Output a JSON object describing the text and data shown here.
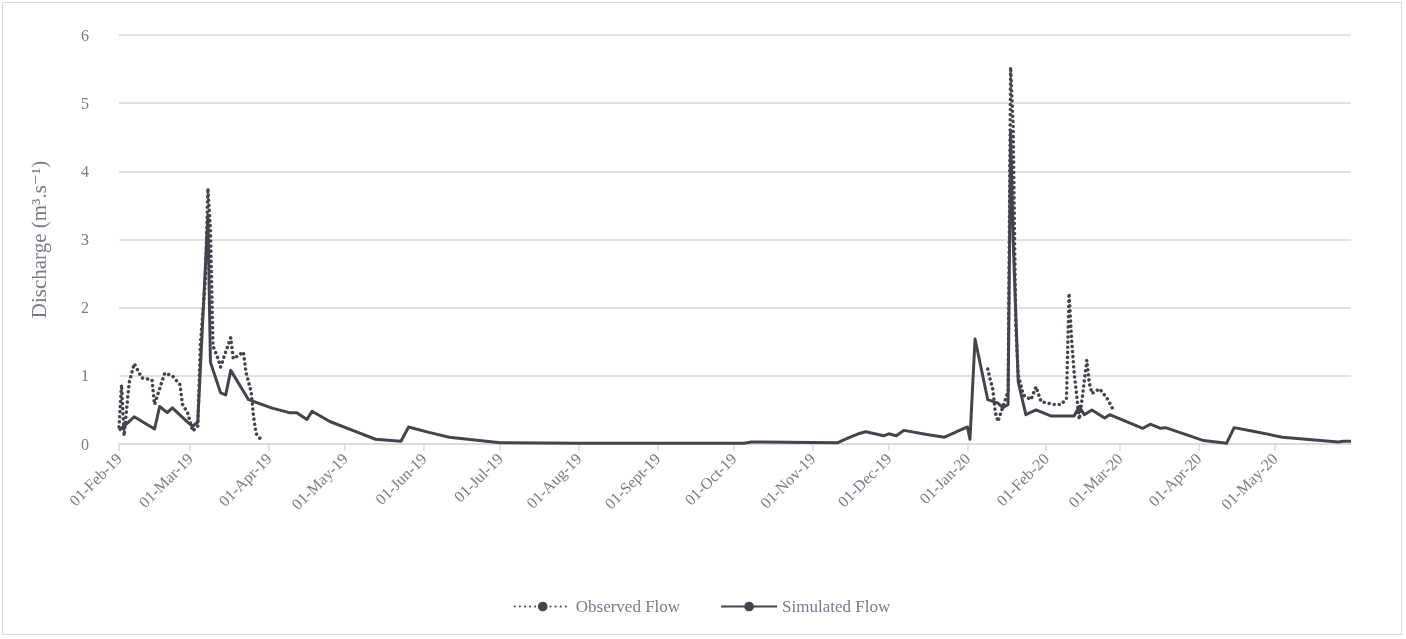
{
  "chart_data": {
    "type": "line",
    "ylabel": "Discharge (m³.s⁻¹)",
    "xlim": [
      "2019-02-01",
      "2020-05-31"
    ],
    "xticks": [
      {
        "value": "2019-02-01",
        "label": "01-Feb-19"
      },
      {
        "value": "2019-03-01",
        "label": "01-Mar-19"
      },
      {
        "value": "2019-04-01",
        "label": "01-Apr-19"
      },
      {
        "value": "2019-05-01",
        "label": "01-May-19"
      },
      {
        "value": "2019-06-01",
        "label": "01-Jun-19"
      },
      {
        "value": "2019-07-01",
        "label": "01-Jul-19"
      },
      {
        "value": "2019-08-01",
        "label": "01-Aug-19"
      },
      {
        "value": "2019-09-01",
        "label": "01-Sept-19"
      },
      {
        "value": "2019-10-01",
        "label": "01-Oct-19"
      },
      {
        "value": "2019-11-01",
        "label": "01-Nov-19"
      },
      {
        "value": "2019-12-01",
        "label": "01-Dec-19"
      },
      {
        "value": "2020-01-01",
        "label": "01-Jan-20"
      },
      {
        "value": "2020-02-01",
        "label": "01-Feb-20"
      },
      {
        "value": "2020-03-01",
        "label": "01-Mar-20"
      },
      {
        "value": "2020-04-01",
        "label": "01-Apr-20"
      },
      {
        "value": "2020-05-01",
        "label": "01-May-20"
      }
    ],
    "ylim": [
      0,
      6
    ],
    "yticks": [
      0,
      1,
      2,
      3,
      4,
      5,
      6
    ],
    "grid": "y",
    "legend": "bottom",
    "marker": "none",
    "series": [
      {
        "name": "Observed Flow",
        "color": "#44444e",
        "line_style": "dotted",
        "x": [
          "2019-02-01",
          "2019-02-02",
          "2019-02-03",
          "2019-02-05",
          "2019-02-07",
          "2019-02-10",
          "2019-02-14",
          "2019-02-15",
          "2019-02-19",
          "2019-02-22",
          "2019-02-25",
          "2019-02-26",
          "2019-02-28",
          "2019-03-02",
          "2019-03-04",
          "2019-03-05",
          "2019-03-07",
          "2019-03-08",
          "2019-03-09",
          "2019-03-10",
          "2019-03-12",
          "2019-03-13",
          "2019-03-15",
          "2019-03-17",
          "2019-03-18",
          "2019-03-22",
          "2019-03-23",
          "2019-03-25",
          "2019-03-26",
          "2019-03-27",
          "2019-03-29",
          "2019-08-01",
          "2020-01-09",
          "2020-01-10",
          "2020-01-11",
          "2020-01-12",
          "2020-01-13",
          "2020-01-15",
          "2020-01-17",
          "2020-01-18",
          "2020-01-19",
          "2020-01-20",
          "2020-01-21",
          "2020-01-23",
          "2020-01-26",
          "2020-01-28",
          "2020-01-30",
          "2020-02-04",
          "2020-02-07",
          "2020-02-09",
          "2020-02-10",
          "2020-02-11",
          "2020-02-12",
          "2020-02-13",
          "2020-02-14",
          "2020-02-15",
          "2020-02-17",
          "2020-02-18",
          "2020-02-19",
          "2020-02-22",
          "2020-02-25",
          "2020-02-27"
        ],
        "values": [
          0.25,
          0.87,
          0.12,
          0.9,
          1.18,
          0.97,
          0.94,
          0.58,
          1.04,
          1.0,
          0.87,
          0.58,
          0.46,
          0.19,
          0.26,
          1.44,
          2.4,
          3.75,
          3.13,
          1.44,
          1.25,
          1.13,
          1.35,
          1.56,
          1.25,
          1.35,
          1.05,
          0.77,
          0.39,
          0.15,
          0.06,
          null,
          1.1,
          0.94,
          0.8,
          0.46,
          0.33,
          0.55,
          0.77,
          5.53,
          4.66,
          1.78,
          1.01,
          0.72,
          0.65,
          0.84,
          0.62,
          0.58,
          0.58,
          0.67,
          2.21,
          1.54,
          1.05,
          0.72,
          0.36,
          0.62,
          1.23,
          0.89,
          0.74,
          0.81,
          0.67,
          0.53
        ]
      },
      {
        "name": "Simulated Flow",
        "color": "#44444e",
        "line_style": "solid",
        "x": [
          "2019-02-01",
          "2019-02-05",
          "2019-02-07",
          "2019-02-15",
          "2019-02-17",
          "2019-02-20",
          "2019-02-22",
          "2019-02-28",
          "2019-03-02",
          "2019-03-04",
          "2019-03-08",
          "2019-03-09",
          "2019-03-13",
          "2019-03-15",
          "2019-03-17",
          "2019-03-24",
          "2019-04-02",
          "2019-04-09",
          "2019-04-12",
          "2019-04-16",
          "2019-04-18",
          "2019-04-25",
          "2019-05-06",
          "2019-05-13",
          "2019-05-23",
          "2019-05-26",
          "2019-06-03",
          "2019-06-11",
          "2019-07-01",
          "2019-08-01",
          "2019-09-01",
          "2019-10-05",
          "2019-10-08",
          "2019-11-11",
          "2019-11-14",
          "2019-11-19",
          "2019-11-22",
          "2019-11-29",
          "2019-12-01",
          "2019-12-04",
          "2019-12-07",
          "2019-12-16",
          "2019-12-23",
          "2020-01-01",
          "2020-01-02",
          "2020-01-04",
          "2020-01-09",
          "2020-01-13",
          "2020-01-15",
          "2020-01-17",
          "2020-01-18",
          "2020-01-19",
          "2020-01-21",
          "2020-01-24",
          "2020-01-28",
          "2020-02-03",
          "2020-02-12",
          "2020-02-14",
          "2020-02-16",
          "2020-02-19",
          "2020-02-24",
          "2020-02-26",
          "2020-03-10",
          "2020-03-13",
          "2020-03-17",
          "2020-03-19",
          "2020-04-03",
          "2020-04-12",
          "2020-04-15",
          "2020-04-22",
          "2020-05-04",
          "2020-05-26",
          "2020-05-28",
          "2020-05-31"
        ],
        "values": [
          0.2,
          0.33,
          0.4,
          0.22,
          0.55,
          0.46,
          0.53,
          0.32,
          0.26,
          0.32,
          3.36,
          1.2,
          0.75,
          0.72,
          1.08,
          0.65,
          0.53,
          0.46,
          0.46,
          0.36,
          0.48,
          0.33,
          0.17,
          0.07,
          0.04,
          0.25,
          0.17,
          0.1,
          0.02,
          0.01,
          0.01,
          0.01,
          0.03,
          0.02,
          0.07,
          0.15,
          0.18,
          0.12,
          0.15,
          0.12,
          0.2,
          0.14,
          0.1,
          0.25,
          0.07,
          1.54,
          0.65,
          0.6,
          0.53,
          0.58,
          4.59,
          2.99,
          0.91,
          0.43,
          0.5,
          0.41,
          0.41,
          0.55,
          0.43,
          0.5,
          0.38,
          0.43,
          0.23,
          0.29,
          0.23,
          0.24,
          0.05,
          0.01,
          0.24,
          0.19,
          0.1,
          0.03,
          0.04,
          0.04
        ]
      }
    ]
  }
}
